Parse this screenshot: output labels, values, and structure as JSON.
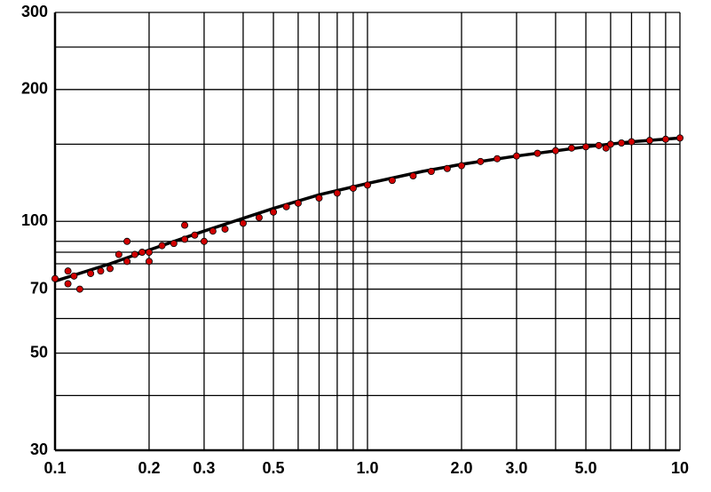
{
  "chart_data": {
    "type": "scatter",
    "xlog": true,
    "ylog": true,
    "grid": true,
    "xlim": [
      0.1,
      10
    ],
    "ylim": [
      30,
      300
    ],
    "xticks": [
      0.1,
      0.2,
      0.3,
      0.5,
      {
        "value": 1,
        "label": "1.0"
      },
      {
        "value": 2,
        "label": "2.0"
      },
      {
        "value": 3,
        "label": "3.0"
      },
      {
        "value": 5,
        "label": "5.0"
      },
      10
    ],
    "xminor": [
      0.4,
      0.6,
      0.7,
      0.8,
      0.9,
      4,
      6,
      7,
      8,
      9
    ],
    "yticks": [
      30,
      50,
      70,
      100,
      200,
      300
    ],
    "yminor": [
      40,
      60,
      80,
      85,
      90,
      150,
      250
    ],
    "points": {
      "color": "#d00000",
      "x": [
        0.1,
        0.11,
        0.11,
        0.115,
        0.12,
        0.13,
        0.14,
        0.15,
        0.16,
        0.17,
        0.17,
        0.18,
        0.19,
        0.2,
        0.2,
        0.22,
        0.24,
        0.26,
        0.26,
        0.28,
        0.3,
        0.32,
        0.35,
        0.4,
        0.45,
        0.5,
        0.55,
        0.6,
        0.7,
        0.8,
        0.9,
        1.0,
        1.2,
        1.4,
        1.6,
        1.8,
        2.0,
        2.3,
        2.6,
        3.0,
        3.5,
        4.0,
        4.5,
        5.0,
        5.5,
        5.8,
        6.0,
        6.5,
        7,
        8,
        9,
        10
      ],
      "y": [
        74,
        77,
        72,
        75,
        70,
        76,
        77,
        78,
        84,
        90,
        81,
        84,
        85,
        81,
        85,
        88,
        89,
        98,
        91,
        93,
        90,
        95,
        96,
        99,
        102,
        105,
        108,
        110,
        113,
        116,
        119,
        121,
        124,
        127,
        130,
        132,
        134,
        137,
        139,
        141,
        143,
        145,
        147,
        148,
        149,
        147,
        150,
        151,
        152,
        153,
        154,
        155
      ]
    },
    "fit": {
      "color": "#000000",
      "x": [
        0.1,
        0.15,
        0.2,
        0.3,
        0.5,
        0.7,
        1,
        1.5,
        2,
        3,
        5,
        7,
        10
      ],
      "y": [
        73,
        80,
        86,
        95,
        107,
        115,
        122,
        130,
        135,
        141,
        148,
        152,
        155
      ]
    }
  }
}
